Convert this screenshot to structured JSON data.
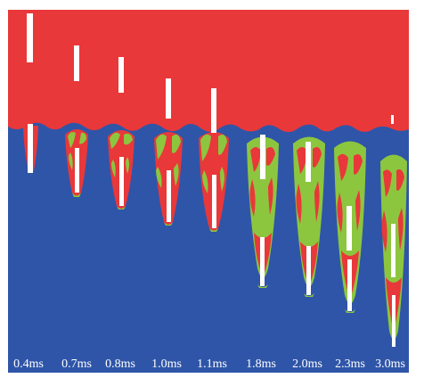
{
  "colors": {
    "background_fluid": "#2f55a8",
    "upper_fluid": "#e8383a",
    "mixing_zone": "#8cc63f",
    "projectile": "#ffffff",
    "label_text": "#ffffff"
  },
  "time_labels": [
    "0.4ms",
    "0.7ms",
    "0.8ms",
    "1.0ms",
    "1.1ms",
    "1.8ms",
    "2.0ms",
    "2.3ms",
    "3.0ms"
  ]
}
